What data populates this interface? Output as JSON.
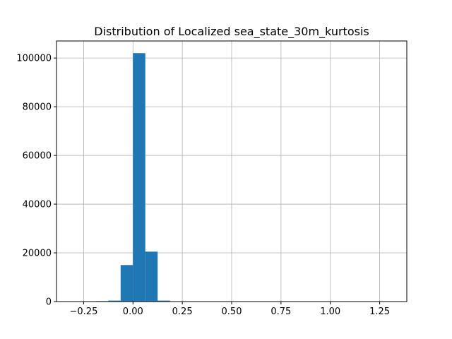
{
  "chart_data": {
    "type": "bar",
    "title": "Distribution of Localized sea_state_30m_kurtosis",
    "xlabel": "",
    "ylabel": "",
    "xlim": [
      -0.3875,
      1.3875
    ],
    "ylim": [
      0,
      107000
    ],
    "xticks": [
      -0.25,
      0.0,
      0.25,
      0.5,
      0.75,
      1.0,
      1.25
    ],
    "xtick_labels": [
      "−0.25",
      "0.00",
      "0.25",
      "0.50",
      "0.75",
      "1.00",
      "1.25"
    ],
    "yticks": [
      0,
      20000,
      40000,
      60000,
      80000,
      100000
    ],
    "ytick_labels": [
      "0",
      "20000",
      "40000",
      "60000",
      "80000",
      "100000"
    ],
    "grid": true,
    "bar_color": "#1f77b4",
    "bins": [
      {
        "x0": -0.1875,
        "x1": -0.125,
        "value": 200
      },
      {
        "x0": -0.125,
        "x1": -0.0625,
        "value": 400
      },
      {
        "x0": -0.0625,
        "x1": 0.0,
        "value": 15000
      },
      {
        "x0": 0.0,
        "x1": 0.0625,
        "value": 102000
      },
      {
        "x0": 0.0625,
        "x1": 0.125,
        "value": 20500
      },
      {
        "x0": 0.125,
        "x1": 0.1875,
        "value": 400
      }
    ]
  }
}
